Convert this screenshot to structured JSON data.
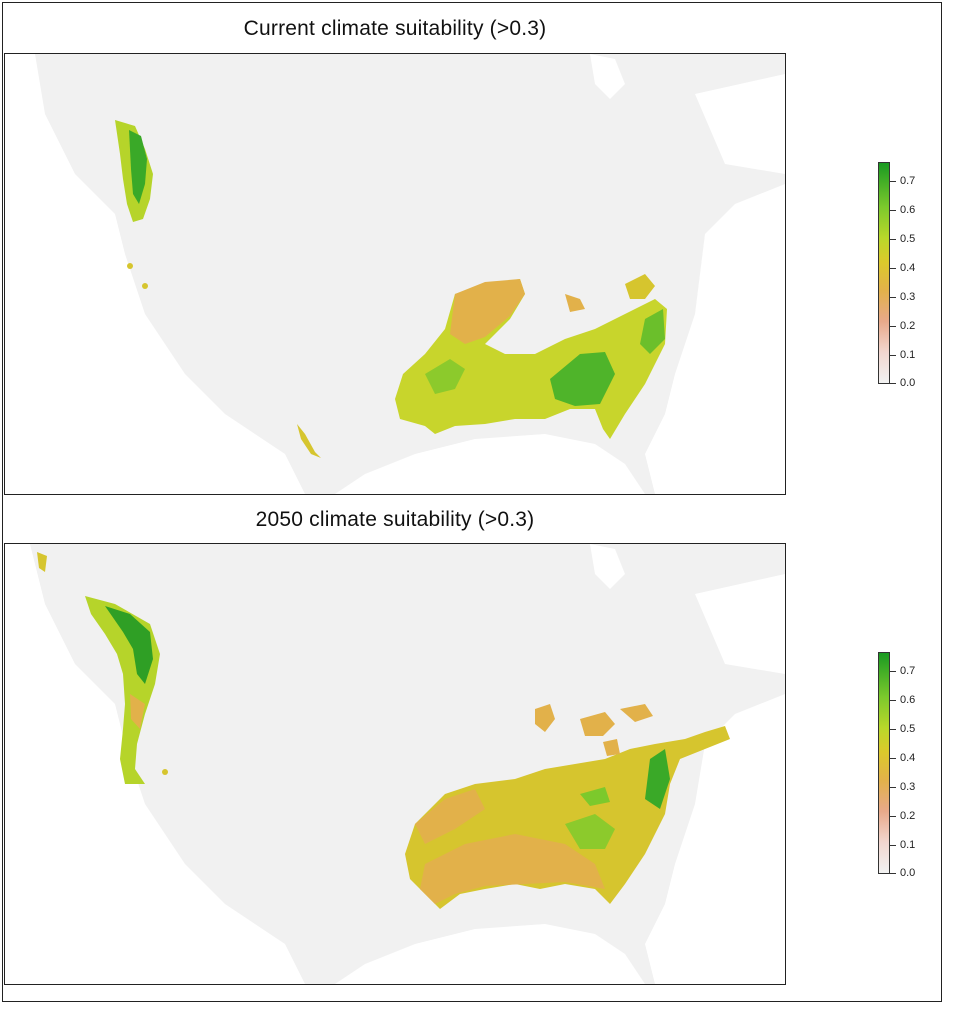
{
  "panels": [
    {
      "title": "Current climate suitability (>0.3)",
      "legend": {
        "ticks": [
          "0.7",
          "0.6",
          "0.5",
          "0.4",
          "0.3",
          "0.2",
          "0.1",
          "0.0"
        ],
        "max": 0.75,
        "min": 0.0
      }
    },
    {
      "title": "2050 climate suitability (>0.3)",
      "legend": {
        "ticks": [
          "0.7",
          "0.6",
          "0.5",
          "0.4",
          "0.3",
          "0.2",
          "0.1",
          "0.0"
        ],
        "max": 0.75,
        "min": 0.0
      }
    }
  ],
  "colors": {
    "land": "#f1f1f1",
    "water": "#ffffff",
    "low": "#e2b14a",
    "mid": "#c8d52c",
    "high": "#1a9a22"
  }
}
